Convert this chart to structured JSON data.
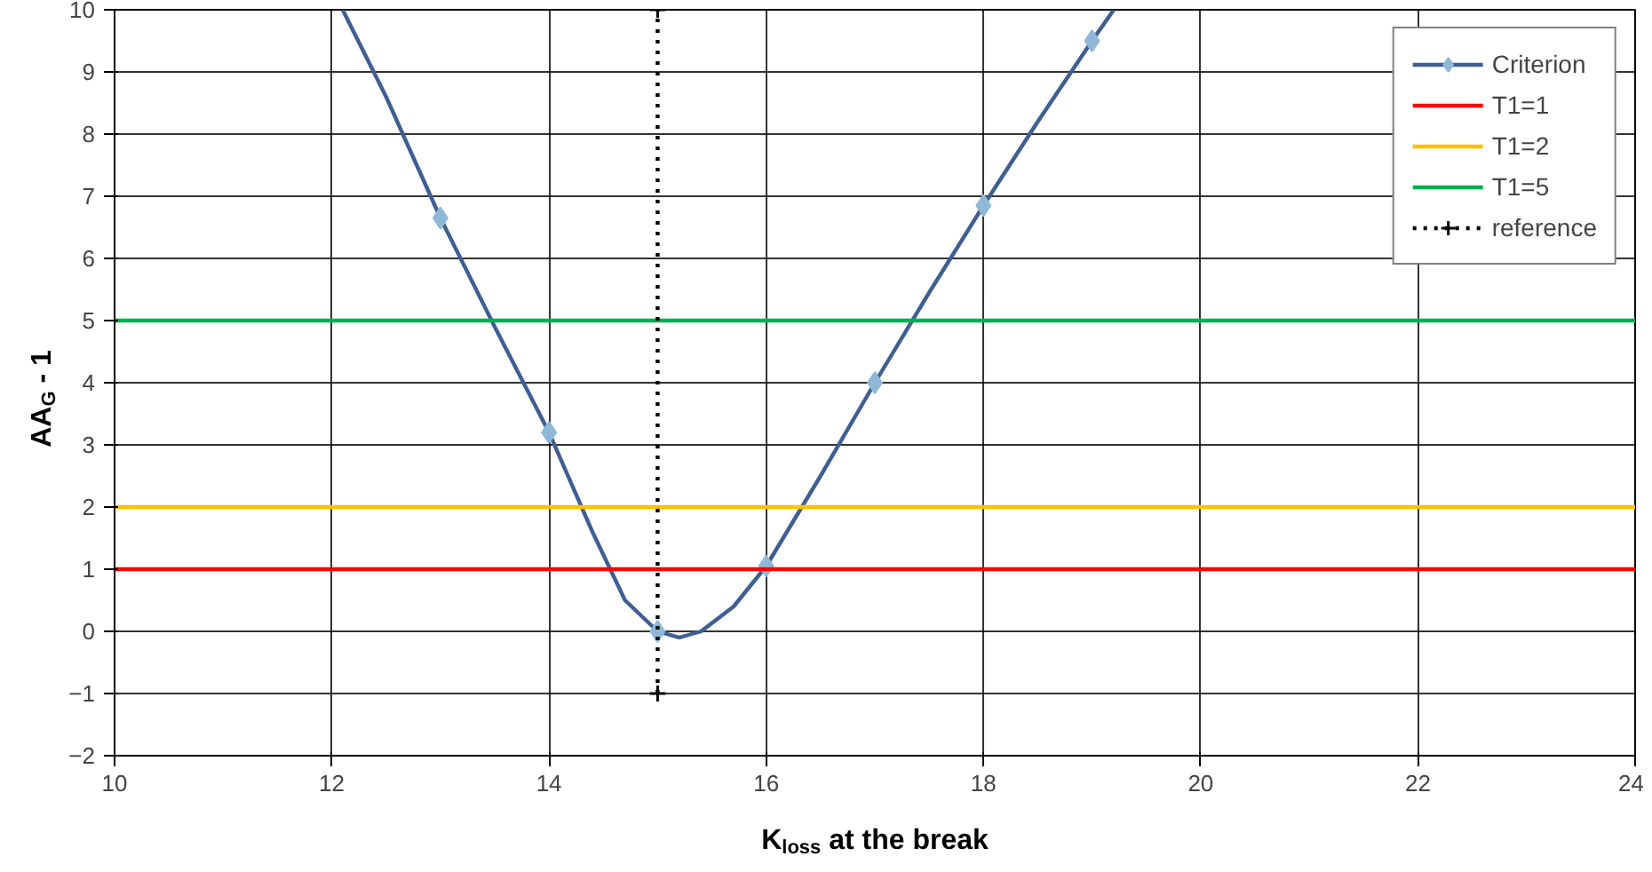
{
  "chart_data": {
    "type": "line",
    "xlabel": "K$_{loss}$ at the break",
    "ylabel": "AA$_{G}$ - 1",
    "xlim": [
      10,
      24
    ],
    "xticks": [
      10,
      12,
      14,
      16,
      18,
      20,
      22,
      24
    ],
    "ylim": [
      -2,
      10
    ],
    "yticks": [
      -2,
      -1,
      0,
      1,
      2,
      3,
      4,
      5,
      6,
      7,
      8,
      9,
      10
    ],
    "grid": true,
    "legend": "top right",
    "series": [
      {
        "color": "#3f5f93",
        "marker": "none",
        "x": [
          12.1,
          12.5,
          13,
          13.5,
          14,
          14.4,
          14.7,
          15,
          15.2,
          15.4,
          15.7,
          16,
          16.5,
          17,
          17.5,
          18,
          18.5,
          19,
          19.2
        ],
        "values": [
          10,
          8.6,
          6.65,
          4.9,
          3.2,
          1.6,
          0.5,
          0.0,
          -0.1,
          0.0,
          0.4,
          1.05,
          2.5,
          4.0,
          5.45,
          6.85,
          8.2,
          9.5,
          10
        ]
      },
      {
        "type": "scatter",
        "name": "Criterion",
        "color": "#8fb8d8",
        "marker": "diamond",
        "x": [
          13,
          14,
          15,
          16,
          17,
          18,
          19
        ],
        "values": [
          6.65,
          3.2,
          0.0,
          1.05,
          4.0,
          6.85,
          9.5
        ]
      },
      {
        "name": "T1=1",
        "color": "#ff0000",
        "marker": "none",
        "x": [
          10,
          24
        ],
        "values": [
          1,
          1
        ]
      },
      {
        "name": "T1=2",
        "color": "#ffc000",
        "marker": "none",
        "x": [
          10,
          24
        ],
        "values": [
          2,
          2
        ]
      },
      {
        "name": "T1=5",
        "color": "#00b050",
        "marker": "none",
        "x": [
          10,
          24
        ],
        "values": [
          5,
          5
        ]
      },
      {
        "name": "reference",
        "color": "#000000",
        "marker": "cross",
        "line_style": "dotted",
        "x": [
          15,
          15
        ],
        "values": [
          -1,
          10
        ]
      }
    ]
  }
}
